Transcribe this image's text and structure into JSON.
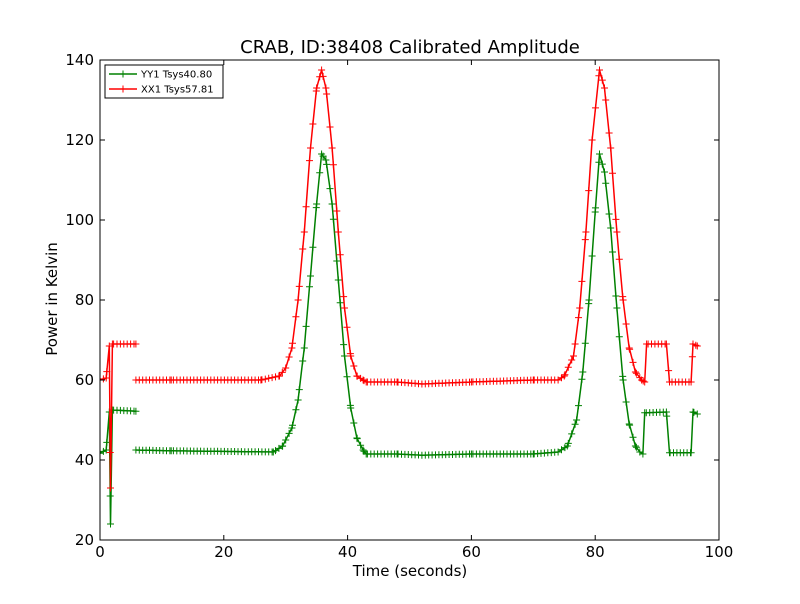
{
  "chart_data": {
    "type": "line",
    "title": "CRAB, ID:38408 Calibrated Amplitude",
    "xlabel": "Time (seconds)",
    "ylabel": "Power in Kelvin",
    "xlim": [
      0,
      100
    ],
    "ylim": [
      20,
      140
    ],
    "xticks": [
      0,
      20,
      40,
      60,
      80,
      100
    ],
    "yticks": [
      20,
      40,
      60,
      80,
      100,
      120,
      140
    ],
    "grid": false,
    "legend_position": "top-left",
    "marker": "+",
    "series": [
      {
        "name": "YY1 Tsys40.80",
        "color": "#008000",
        "segments": [
          {
            "x": [
              0.0,
              1.0,
              1.5,
              1.7,
              2.0,
              5.8
            ],
            "y": [
              41.7,
              42.5,
              52.0,
              24.0,
              52.5,
              52.2
            ]
          },
          {
            "x": [
              5.8,
              11.5,
              28.0,
              29.5,
              31.0,
              32.0,
              33.0,
              34.0,
              35.0,
              35.8,
              36.5,
              37.5,
              38.5,
              39.5,
              40.5,
              41.5,
              42.5,
              43.0,
              48.0,
              52.0,
              60.0,
              70.0,
              74.0,
              75.5,
              77.0,
              78.0,
              79.0,
              80.0,
              80.7,
              81.5,
              82.5,
              83.5,
              84.5,
              85.5,
              86.5,
              87.2,
              87.7
            ],
            "y": [
              42.5,
              42.3,
              42.0,
              43.5,
              48.0,
              55.0,
              68.0,
              86.0,
              104.0,
              116.5,
              115.0,
              104.0,
              85.0,
              66.0,
              53.0,
              45.5,
              42.5,
              41.5,
              41.5,
              41.2,
              41.5,
              41.5,
              42.0,
              43.5,
              50.0,
              62.0,
              80.0,
              102.0,
              116.5,
              112.0,
              98.0,
              78.0,
              60.0,
              49.0,
              43.5,
              42.0,
              41.5
            ]
          },
          {
            "x": [
              87.7,
              88.0,
              91.5,
              92.0,
              95.5,
              95.8,
              96.5
            ],
            "y": [
              41.5,
              51.8,
              52.0,
              41.8,
              41.8,
              52.0,
              51.5
            ]
          }
        ]
      },
      {
        "name": "XX1 Tsys57.81",
        "color": "#ff0000",
        "segments": [
          {
            "x": [
              0.0,
              1.0,
              1.5,
              1.7,
              2.0,
              5.8
            ],
            "y": [
              60.0,
              60.5,
              68.5,
              33.0,
              69.0,
              69.0
            ]
          },
          {
            "x": [
              5.8,
              11.5,
              26.0,
              29.0,
              30.0,
              31.0,
              32.0,
              33.0,
              34.0,
              35.0,
              35.8,
              36.5,
              37.5,
              38.5,
              39.5,
              40.5,
              41.5,
              42.5,
              43.0,
              48.0,
              52.0,
              60.0,
              70.0,
              74.0,
              75.0,
              76.5,
              77.5,
              78.5,
              79.5,
              80.7,
              81.5,
              82.5,
              83.5,
              84.5,
              85.5,
              86.5,
              87.5,
              88.0
            ],
            "y": [
              60.0,
              60.0,
              60.0,
              61.0,
              63.0,
              68.0,
              80.0,
              97.0,
              118.0,
              133.0,
              137.5,
              133.0,
              118.0,
              97.0,
              78.0,
              66.0,
              61.0,
              60.0,
              59.5,
              59.5,
              59.0,
              59.5,
              60.0,
              60.0,
              61.0,
              66.0,
              78.0,
              97.0,
              120.0,
              137.5,
              133.0,
              118.0,
              97.0,
              80.0,
              68.0,
              62.0,
              60.0,
              59.5
            ]
          },
          {
            "x": [
              88.0,
              88.3,
              91.5,
              92.0,
              95.5,
              95.8,
              96.5
            ],
            "y": [
              59.5,
              69.0,
              69.0,
              59.5,
              59.5,
              69.0,
              68.5
            ]
          }
        ]
      }
    ]
  }
}
